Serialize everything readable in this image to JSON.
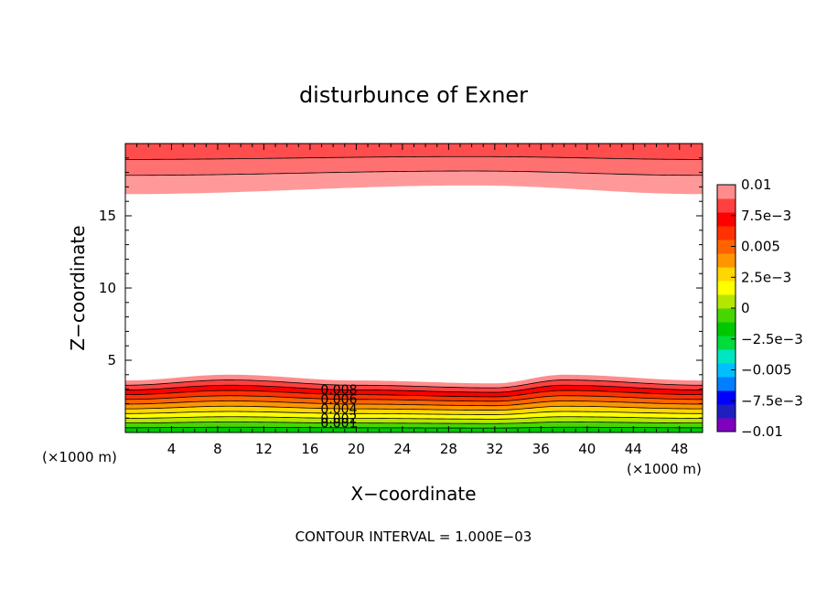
{
  "chart_data": {
    "type": "contour",
    "title": "disturbunce of Exner",
    "xlabel": "X−coordinate",
    "ylabel": "Z−coordinate",
    "x_unit": "(×1000 m)",
    "y_unit": "(×1000 m)",
    "xlim": [
      0,
      50
    ],
    "ylim": [
      0,
      20
    ],
    "x_ticks": [
      {
        "value": 4,
        "label": "4"
      },
      {
        "value": 8,
        "label": "8"
      },
      {
        "value": 12,
        "label": "12"
      },
      {
        "value": 16,
        "label": "16"
      },
      {
        "value": 20,
        "label": "20"
      },
      {
        "value": 24,
        "label": "24"
      },
      {
        "value": 28,
        "label": "28"
      },
      {
        "value": 32,
        "label": "32"
      },
      {
        "value": 36,
        "label": "36"
      },
      {
        "value": 40,
        "label": "40"
      },
      {
        "value": 44,
        "label": "44"
      },
      {
        "value": 48,
        "label": "48"
      }
    ],
    "y_ticks": [
      {
        "value": 5,
        "label": "5"
      },
      {
        "value": 10,
        "label": "10"
      },
      {
        "value": 15,
        "label": "15"
      }
    ],
    "footer": "CONTOUR INTERVAL = 1.000E−03",
    "contour_interval": 0.001,
    "contour_levels": [
      0.001,
      0.002,
      0.003,
      0.004,
      0.005,
      0.006,
      0.007,
      0.008,
      0.009,
      0.01
    ],
    "contour_labels": [
      {
        "value": 0.001,
        "label": "0.001"
      },
      {
        "value": 0.002,
        "label": "0.002"
      },
      {
        "value": 0.004,
        "label": "0.004"
      },
      {
        "value": 0.006,
        "label": "0.006"
      },
      {
        "value": 0.008,
        "label": "0.008"
      }
    ],
    "lower_band_base_z": [
      {
        "x": 0,
        "z": 3.0
      },
      {
        "x": 9,
        "z": 3.4
      },
      {
        "x": 20,
        "z": 3.0
      },
      {
        "x": 32,
        "z": 2.8
      },
      {
        "x": 38,
        "z": 3.4
      },
      {
        "x": 50,
        "z": 3.0
      }
    ],
    "lower_band_spacing_z": 0.32,
    "upper_band_boundaries": [
      {
        "x": 0,
        "z": [
          16.5,
          17.8,
          18.9
        ]
      },
      {
        "x": 30,
        "z": [
          17.1,
          18.1,
          19.1
        ]
      },
      {
        "x": 50,
        "z": [
          16.5,
          17.8,
          18.9
        ]
      }
    ],
    "colorbar": {
      "min": -0.01,
      "max": 0.01,
      "colors": [
        "#7f00bf",
        "#1f1fbf",
        "#0000ff",
        "#0080ff",
        "#00bfff",
        "#00e6c0",
        "#00dc3c",
        "#00c800",
        "#46d700",
        "#b4e600",
        "#ffff00",
        "#ffd700",
        "#ff9600",
        "#ff6400",
        "#ff3200",
        "#ff0000",
        "#ff4040",
        "#ff8c8c"
      ],
      "ticks": [
        {
          "value": 0.01,
          "label": "0.01"
        },
        {
          "value": 0.0075,
          "label": "7.5e−3"
        },
        {
          "value": 0.005,
          "label": "0.005"
        },
        {
          "value": 0.0025,
          "label": "2.5e−3"
        },
        {
          "value": 0,
          "label": "0"
        },
        {
          "value": -0.0025,
          "label": "−2.5e−3"
        },
        {
          "value": -0.005,
          "label": "−0.005"
        },
        {
          "value": -0.0075,
          "label": "−7.5e−3"
        },
        {
          "value": -0.01,
          "label": "−0.01"
        }
      ]
    },
    "band_colors_low_to_high": [
      "#00c800",
      "#46d700",
      "#b4e600",
      "#ffff00",
      "#ffd700",
      "#ff9600",
      "#ff6400",
      "#ff3200",
      "#ff0000",
      "#ff4040",
      "#ff8c8c"
    ],
    "upper_band_colors": [
      "#ff9999",
      "#ff7070",
      "#ff4d4d"
    ]
  }
}
